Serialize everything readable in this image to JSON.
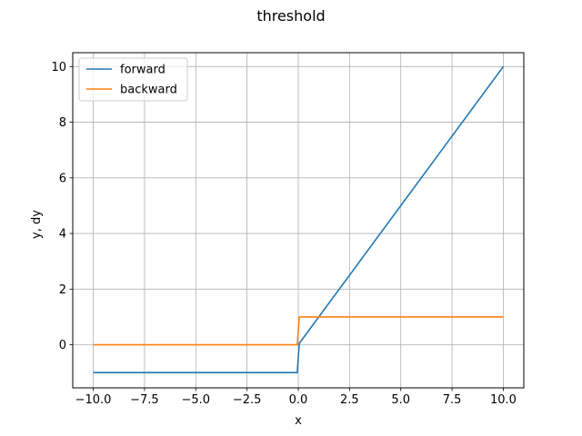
{
  "chart_data": {
    "type": "line",
    "title": "threshold",
    "xlabel": "x",
    "ylabel": "y, dy",
    "xlim": [
      -11,
      11
    ],
    "ylim": [
      -1.55,
      10.5
    ],
    "xticks": [
      -10,
      -7.5,
      -5,
      -2.5,
      0,
      2.5,
      5,
      7.5,
      10
    ],
    "xtick_labels": [
      "−10.0",
      "−7.5",
      "−5.0",
      "−2.5",
      "0.0",
      "2.5",
      "5.0",
      "7.5",
      "10.0"
    ],
    "yticks": [
      0,
      2,
      4,
      6,
      8,
      10
    ],
    "ytick_labels": [
      "0",
      "2",
      "4",
      "6",
      "8",
      "10"
    ],
    "grid": true,
    "legend_position": "top-left",
    "series": [
      {
        "name": "forward",
        "color": "#1f77b4",
        "x": [
          -10,
          -0.05,
          0.05,
          10
        ],
        "y": [
          -1,
          -1,
          0.05,
          10
        ]
      },
      {
        "name": "backward",
        "color": "#ff7f0e",
        "x": [
          -10,
          -0.05,
          0.05,
          10
        ],
        "y": [
          0,
          0,
          1,
          1
        ]
      }
    ]
  }
}
